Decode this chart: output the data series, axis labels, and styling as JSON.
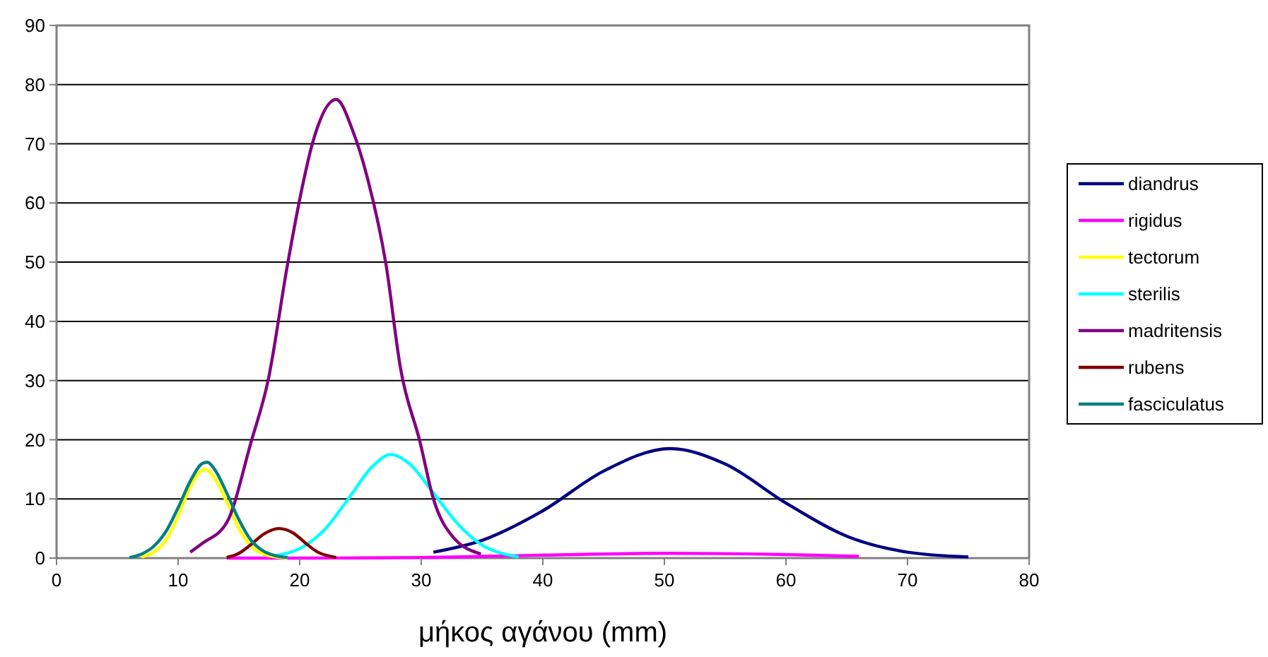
{
  "chart_data": {
    "type": "line",
    "xlabel": "μήκος αγάνου (mm)",
    "xlim": [
      0,
      80
    ],
    "xticks": [
      0,
      10,
      20,
      30,
      40,
      50,
      60,
      70,
      80
    ],
    "ylim": [
      0,
      90
    ],
    "yticks": [
      0,
      10,
      20,
      30,
      40,
      50,
      60,
      70,
      80,
      90
    ],
    "grid": "y",
    "legend": "right",
    "marker": "none",
    "line_style": "solid",
    "series": [
      {
        "name": "diandrus",
        "color": "#000080",
        "x": [
          31,
          35,
          40,
          45,
          50.5,
          55,
          60,
          65,
          70,
          75
        ],
        "values": [
          1.0,
          3.0,
          8.0,
          14.7,
          18.5,
          15.9,
          9.3,
          3.7,
          1.0,
          0.2
        ]
      },
      {
        "name": "rigidus",
        "color": "#ff00ff",
        "x": [
          14,
          20,
          30,
          40,
          50,
          60,
          66
        ],
        "values": [
          0,
          0,
          0.1,
          0.5,
          0.8,
          0.6,
          0.3
        ]
      },
      {
        "name": "tectorum",
        "color": "#ffff00",
        "x": [
          7,
          8,
          9,
          10,
          11,
          12.2,
          13,
          14,
          15,
          16,
          17,
          18,
          19
        ],
        "values": [
          0.2,
          1,
          3,
          7,
          12,
          15,
          13.5,
          9.5,
          5,
          2,
          0.7,
          0.2,
          0
        ]
      },
      {
        "name": "sterilis",
        "color": "#00ffff",
        "x": [
          18,
          20,
          22,
          24,
          26,
          27.5,
          29,
          31,
          33,
          35,
          37,
          38
        ],
        "values": [
          0.4,
          1.6,
          4.7,
          10,
          15.5,
          17.5,
          16,
          11,
          5.8,
          2.2,
          0.6,
          0.2
        ]
      },
      {
        "name": "madritensis",
        "color": "#800080",
        "x": [
          11,
          12,
          14,
          16,
          17.4,
          19,
          20.1,
          21,
          23,
          24.4,
          25.6,
          27.1,
          28.3,
          29.9,
          31,
          32.6,
          34.9
        ],
        "values": [
          1,
          2.5,
          6,
          19.6,
          30,
          49.6,
          61.6,
          69.7,
          77.5,
          72,
          64,
          49.6,
          32,
          19.6,
          10,
          3.6,
          0.7
        ]
      },
      {
        "name": "rubens",
        "color": "#800000",
        "x": [
          14,
          15,
          16,
          17,
          18.3,
          19.5,
          20.5,
          21.5,
          22.5,
          23
        ],
        "values": [
          0.1,
          0.8,
          2.3,
          4,
          5,
          4.2,
          2.5,
          1,
          0.3,
          0.1
        ]
      },
      {
        "name": "fasciculatus",
        "color": "#008080",
        "x": [
          6,
          7,
          8,
          9,
          10,
          11,
          12,
          12.4,
          13,
          14,
          15,
          16,
          17,
          18,
          19
        ],
        "values": [
          0.1,
          0.7,
          2,
          4.5,
          8.5,
          13,
          16,
          16.2,
          15,
          11,
          6.5,
          3,
          1.2,
          0.4,
          0.1
        ]
      }
    ]
  }
}
